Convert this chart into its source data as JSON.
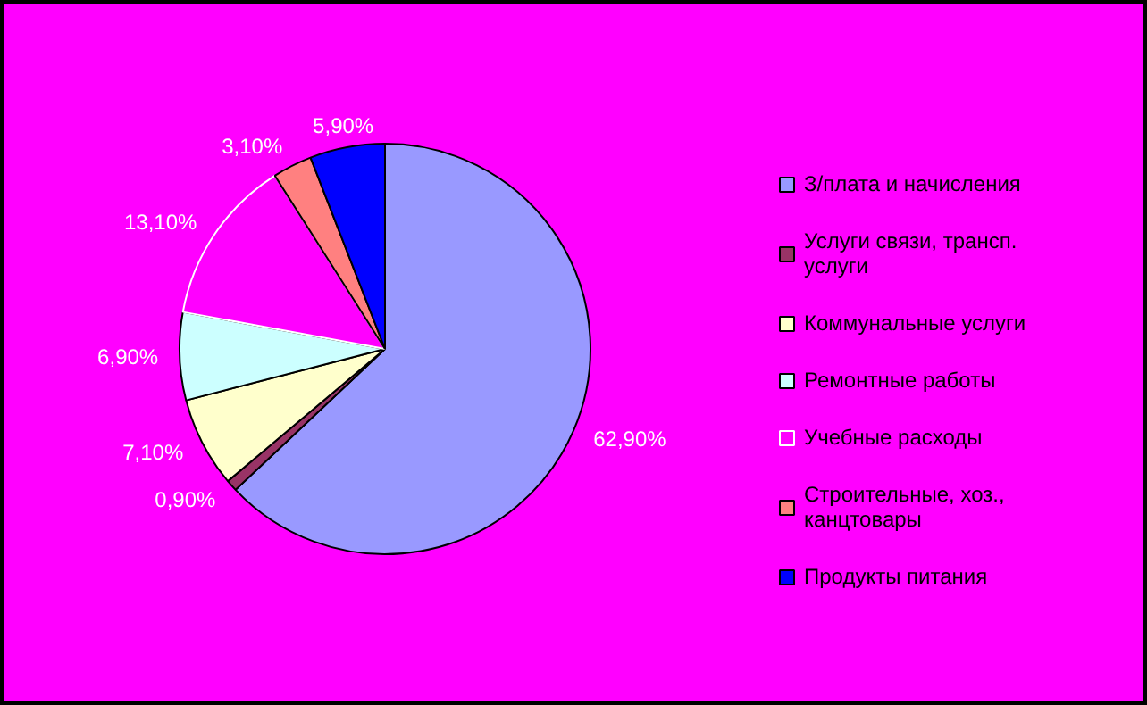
{
  "chart_data": {
    "type": "pie",
    "categories": [
      "З/плата и начисления",
      "Услуги связи, трансп. услуги",
      "Коммунальные услуги",
      "Ремонтные работы",
      "Учебные расходы",
      "Строительные, хоз., канцтовары",
      "Продукты питания"
    ],
    "values": [
      62.9,
      0.9,
      7.1,
      6.9,
      13.1,
      3.1,
      5.9
    ],
    "colors": [
      "#9999ff",
      "#993366",
      "#ffffcc",
      "#ccffff",
      "#ff00ff",
      "#ff8080",
      "#0000ff"
    ],
    "value_labels": [
      "62,90%",
      "0,90%",
      "7,10%",
      "6,90%",
      "13,10%",
      "3,10%",
      "5,90%"
    ],
    "legend": "right"
  }
}
